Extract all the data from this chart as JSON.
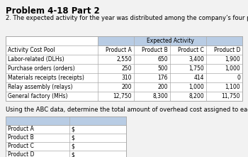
{
  "title": "Problem 4-18 Part 2",
  "subtitle": "2. The expected activity for the year was distributed among the company’s four products as follows:",
  "expected_activity_label": "Expected Activity",
  "col_headers": [
    "Activity Cost Pool",
    "Product A",
    "Product B",
    "Product C",
    "Product D"
  ],
  "rows": [
    [
      "Labor-related (DLHs)",
      "2,550",
      "650",
      "3,400",
      "1,900"
    ],
    [
      "Purchase orders (orders)",
      "250",
      "500",
      "1,750",
      "1,000"
    ],
    [
      "Materials receipts (receipts)",
      "310",
      "176",
      "414",
      "0"
    ],
    [
      "Relay assembly (relays)",
      "200",
      "200",
      "1,000",
      "1,100"
    ],
    [
      "General factory (MHs)",
      "12,750",
      "8,300",
      "8,200",
      "11,750"
    ]
  ],
  "answer_label": "Using the ABC data, determine the total amount of overhead cost assigned to each product.",
  "answer_products": [
    "Product A",
    "Product B",
    "Product C",
    "Product D"
  ],
  "bg_color": "#f2f2f2",
  "table_bg": "#ffffff",
  "header_span_bg": "#b8cce4",
  "answer_header_bg": "#b8cce4",
  "grid_color": "#aaaaaa",
  "title_fontsize": 8.5,
  "body_fontsize": 5.5,
  "subtitle_fontsize": 6.0
}
